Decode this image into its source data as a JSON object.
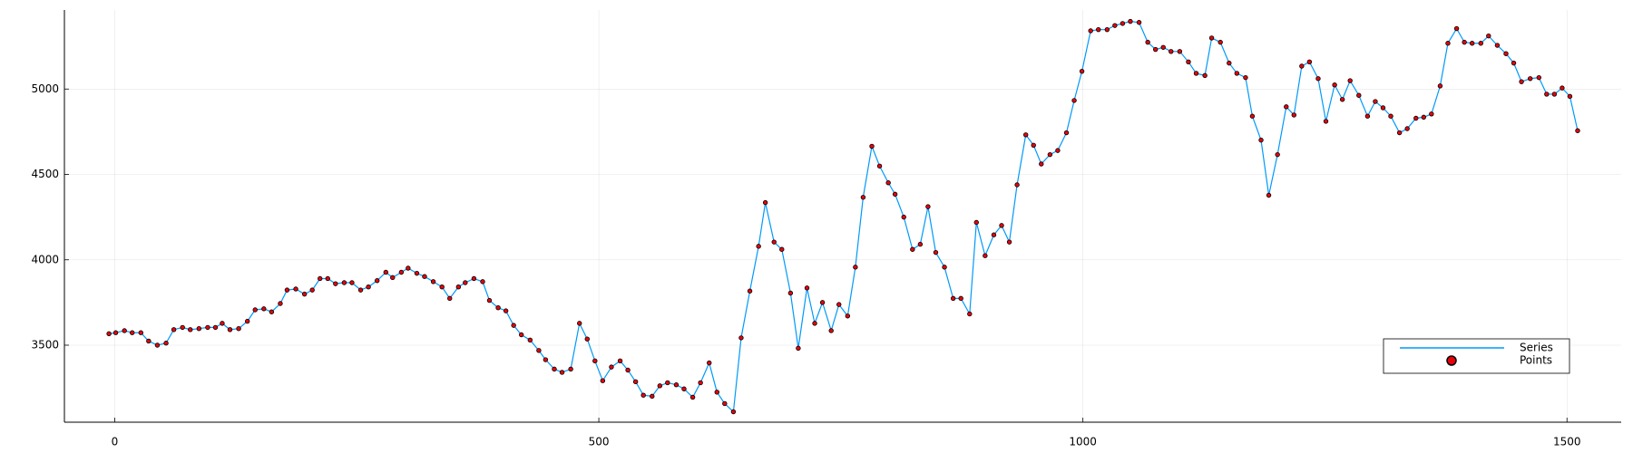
{
  "chart_data": {
    "type": "line",
    "x": [
      -6,
      1,
      10,
      18,
      27,
      35,
      44,
      53,
      61,
      70,
      78,
      87,
      96,
      104,
      111,
      119,
      128,
      137,
      145,
      154,
      162,
      171,
      178,
      187,
      196,
      204,
      212,
      220,
      228,
      237,
      245,
      254,
      262,
      271,
      280,
      287,
      296,
      303,
      312,
      320,
      329,
      338,
      346,
      355,
      362,
      371,
      380,
      387,
      396,
      404,
      412,
      420,
      429,
      438,
      445,
      454,
      462,
      471,
      480,
      488,
      496,
      504,
      513,
      522,
      530,
      538,
      546,
      555,
      563,
      571,
      580,
      588,
      597,
      605,
      614,
      622,
      630,
      639,
      647,
      656,
      665,
      672,
      681,
      689,
      698,
      706,
      715,
      723,
      731,
      740,
      748,
      757,
      765,
      773,
      782,
      790,
      799,
      806,
      815,
      824,
      832,
      840,
      848,
      857,
      866,
      874,
      883,
      890,
      899,
      908,
      916,
      924,
      932,
      941,
      949,
      957,
      966,
      974,
      983,
      991,
      999,
      1008,
      1016,
      1025,
      1033,
      1041,
      1049,
      1058,
      1067,
      1075,
      1083,
      1091,
      1100,
      1109,
      1117,
      1126,
      1133,
      1142,
      1151,
      1159,
      1168,
      1175,
      1184,
      1192,
      1201,
      1210,
      1218,
      1226,
      1234,
      1243,
      1251,
      1260,
      1268,
      1276,
      1285,
      1294,
      1302,
      1310,
      1318,
      1327,
      1335,
      1344,
      1352,
      1360,
      1369,
      1377,
      1386,
      1394,
      1402,
      1411,
      1419,
      1428,
      1437,
      1445,
      1453,
      1462,
      1471,
      1479,
      1487,
      1495,
      1503,
      1511
    ],
    "series": [
      {
        "name": "Series",
        "type": "line",
        "color": "#009af9",
        "values": [
          3567,
          3573,
          3585,
          3573,
          3573,
          3524,
          3500,
          3512,
          3591,
          3604,
          3591,
          3597,
          3604,
          3604,
          3628,
          3591,
          3597,
          3640,
          3707,
          3713,
          3695,
          3744,
          3823,
          3829,
          3799,
          3823,
          3890,
          3890,
          3860,
          3866,
          3866,
          3823,
          3841,
          3878,
          3927,
          3896,
          3927,
          3951,
          3921,
          3902,
          3872,
          3841,
          3774,
          3841,
          3866,
          3890,
          3872,
          3762,
          3719,
          3701,
          3616,
          3561,
          3530,
          3469,
          3415,
          3360,
          3341,
          3360,
          3628,
          3536,
          3408,
          3292,
          3372,
          3408,
          3354,
          3286,
          3207,
          3201,
          3262,
          3280,
          3268,
          3244,
          3195,
          3280,
          3396,
          3225,
          3158,
          3110,
          3543,
          3817,
          4079,
          4335,
          4104,
          4061,
          3805,
          3482,
          3835,
          3628,
          3750,
          3585,
          3738,
          3671,
          3957,
          4366,
          4665,
          4549,
          4451,
          4384,
          4250,
          4061,
          4091,
          4311,
          4043,
          3957,
          3774,
          3774,
          3683,
          4219,
          4024,
          4146,
          4201,
          4104,
          4439,
          4732,
          4671,
          4561,
          4616,
          4640,
          4744,
          4933,
          5104,
          5341,
          5348,
          5348,
          5372,
          5384,
          5396,
          5390,
          5274,
          5232,
          5244,
          5220,
          5220,
          5159,
          5092,
          5079,
          5299,
          5274,
          5152,
          5092,
          5067,
          4841,
          4701,
          4378,
          4616,
          4896,
          4848,
          5134,
          5159,
          5061,
          4811,
          5024,
          4939,
          5049,
          4963,
          4841,
          4927,
          4890,
          4841,
          4744,
          4768,
          4829,
          4835,
          4854,
          5018,
          5268,
          5354,
          5274,
          5268,
          5268,
          5311,
          5256,
          5207,
          5152,
          5043,
          5061,
          5067,
          4970,
          4970,
          5006,
          4957,
          4756
        ]
      },
      {
        "name": "Points",
        "type": "scatter",
        "color": "#e8000b",
        "values": [
          3567,
          3573,
          3585,
          3573,
          3573,
          3524,
          3500,
          3512,
          3591,
          3604,
          3591,
          3597,
          3604,
          3604,
          3628,
          3591,
          3597,
          3640,
          3707,
          3713,
          3695,
          3744,
          3823,
          3829,
          3799,
          3823,
          3890,
          3890,
          3860,
          3866,
          3866,
          3823,
          3841,
          3878,
          3927,
          3896,
          3927,
          3951,
          3921,
          3902,
          3872,
          3841,
          3774,
          3841,
          3866,
          3890,
          3872,
          3762,
          3719,
          3701,
          3616,
          3561,
          3530,
          3469,
          3415,
          3360,
          3341,
          3360,
          3628,
          3536,
          3408,
          3292,
          3372,
          3408,
          3354,
          3286,
          3207,
          3201,
          3262,
          3280,
          3268,
          3244,
          3195,
          3280,
          3396,
          3225,
          3158,
          3110,
          3543,
          3817,
          4079,
          4335,
          4104,
          4061,
          3805,
          3482,
          3835,
          3628,
          3750,
          3585,
          3738,
          3671,
          3957,
          4366,
          4665,
          4549,
          4451,
          4384,
          4250,
          4061,
          4091,
          4311,
          4043,
          3957,
          3774,
          3774,
          3683,
          4219,
          4024,
          4146,
          4201,
          4104,
          4439,
          4732,
          4671,
          4561,
          4616,
          4640,
          4744,
          4933,
          5104,
          5341,
          5348,
          5348,
          5372,
          5384,
          5396,
          5390,
          5274,
          5232,
          5244,
          5220,
          5220,
          5159,
          5092,
          5079,
          5299,
          5274,
          5152,
          5092,
          5067,
          4841,
          4701,
          4378,
          4616,
          4896,
          4848,
          5134,
          5159,
          5061,
          4811,
          5024,
          4939,
          5049,
          4963,
          4841,
          4927,
          4890,
          4841,
          4744,
          4768,
          4829,
          4835,
          4854,
          5018,
          5268,
          5354,
          5274,
          5268,
          5268,
          5311,
          5256,
          5207,
          5152,
          5043,
          5061,
          5067,
          4970,
          4970,
          5006,
          4957,
          4756
        ]
      }
    ],
    "xlim": [
      -52,
      1556
    ],
    "xticks": [
      0,
      500,
      1000,
      1500
    ],
    "ylim": [
      3049,
      5463
    ],
    "yticks": [
      3500,
      4000,
      4500,
      5000
    ],
    "grid": true,
    "legend": "lower right"
  }
}
